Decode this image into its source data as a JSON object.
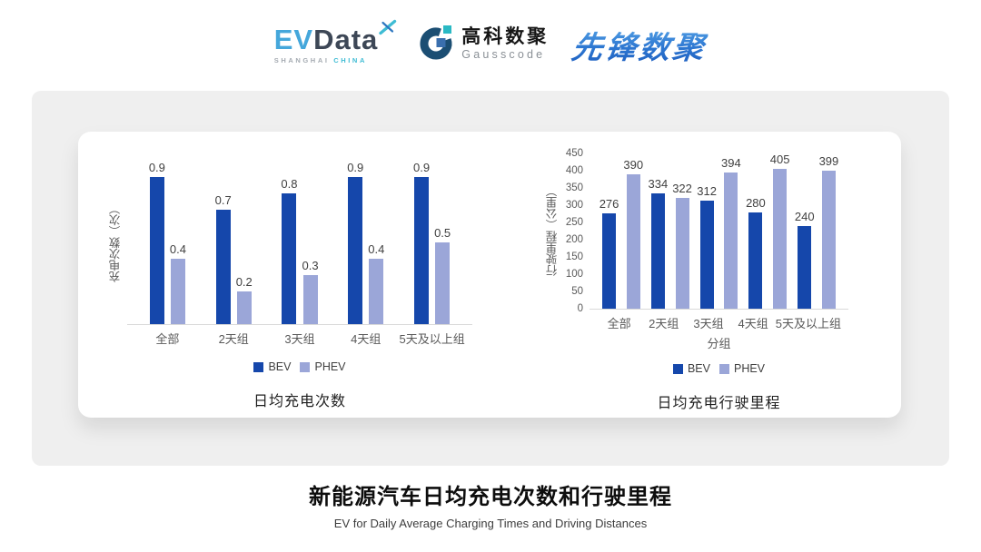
{
  "header": {
    "evdata": {
      "ev": "EV",
      "data": "Data",
      "tagline_left": "SHANGHAI",
      "tagline_right": "CHINA"
    },
    "gausscode": {
      "name_cn": "高科数聚",
      "name_en": "Gausscode"
    },
    "xianfeng": {
      "name": "先锋数聚"
    }
  },
  "colors": {
    "bev": "#1547ab",
    "phev": "#9ba6d8",
    "panel_gray": "#efefef",
    "axis_line": "#d9d9d9",
    "evdata_blue": "#45a7db",
    "evdata_dark": "#3d4756",
    "teal_accent": "#3fbcd4",
    "gauss_navy": "#1b4e73",
    "gauss_teal": "#2ab9c4",
    "gauss_blue": "#3a6fae",
    "xianfeng_blue": "#2a72cc"
  },
  "chart_data": [
    {
      "type": "bar",
      "title": "日均充电次数",
      "ylabel": "充电次数（次）",
      "xlabel": "",
      "categories": [
        "全部",
        "2天组",
        "3天组",
        "4天组",
        "5天及以上组"
      ],
      "series": [
        {
          "name": "BEV",
          "values": [
            0.9,
            0.7,
            0.8,
            0.9,
            0.9
          ]
        },
        {
          "name": "PHEV",
          "values": [
            0.4,
            0.2,
            0.3,
            0.4,
            0.5
          ]
        }
      ],
      "ylim": [
        0,
        1.0
      ],
      "yticks": null,
      "grid": false,
      "legend_position": "bottom"
    },
    {
      "type": "bar",
      "title": "日均充电行驶里程",
      "ylabel": "行驶里程（公里）",
      "xlabel": "分组",
      "categories": [
        "全部",
        "2天组",
        "3天组",
        "4天组",
        "5天及以上组"
      ],
      "series": [
        {
          "name": "BEV",
          "values": [
            276,
            334,
            312,
            280,
            240
          ]
        },
        {
          "name": "PHEV",
          "values": [
            390,
            322,
            394,
            405,
            399
          ]
        }
      ],
      "ylim": [
        0,
        450
      ],
      "yticks": [
        0,
        50,
        100,
        150,
        200,
        250,
        300,
        350,
        400,
        450
      ],
      "grid": false,
      "legend_position": "bottom"
    }
  ],
  "footer": {
    "title": "新能源汽车日均充电次数和行驶里程",
    "subtitle": "EV for Daily Average Charging Times and Driving Distances"
  }
}
